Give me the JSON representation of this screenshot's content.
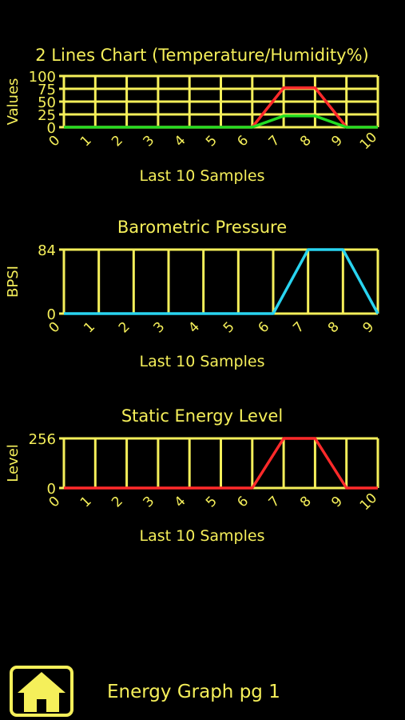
{
  "colors": {
    "axis": "#f5ef5a",
    "background": "#000000"
  },
  "chart_data": [
    {
      "type": "line",
      "title": "2 Lines Chart (Temperature/Humidity%)",
      "ylabel": "Values",
      "xlabel": "Last 10 Samples",
      "x": [
        0,
        1,
        2,
        3,
        4,
        5,
        6,
        7,
        8,
        9,
        10
      ],
      "ylim": [
        0,
        100
      ],
      "yticks": [
        "100",
        "75",
        "50",
        "25",
        "0"
      ],
      "xticks": [
        "0",
        "1",
        "2",
        "3",
        "4",
        "5",
        "6",
        "7",
        "8",
        "9",
        "10"
      ],
      "grid": true,
      "series": [
        {
          "color": "#ff2a2a",
          "values": [
            0,
            0,
            0,
            0,
            0,
            0,
            0,
            77,
            77,
            0,
            0
          ]
        },
        {
          "color": "#22dd22",
          "values": [
            0,
            0,
            0,
            0,
            0,
            0,
            0,
            22,
            22,
            0,
            0
          ]
        }
      ]
    },
    {
      "type": "line",
      "title": "Barometric Pressure",
      "ylabel": "BPSI",
      "xlabel": "Last 10 Samples",
      "x": [
        0,
        1,
        2,
        3,
        4,
        5,
        6,
        7,
        8,
        9
      ],
      "ylim": [
        0,
        84
      ],
      "yticks": [
        "84",
        "0"
      ],
      "xticks": [
        "0",
        "1",
        "2",
        "3",
        "4",
        "5",
        "6",
        "7",
        "8",
        "9"
      ],
      "grid": true,
      "series": [
        {
          "color": "#29d4f0",
          "values": [
            0,
            0,
            0,
            0,
            0,
            0,
            0,
            84,
            84,
            0
          ]
        }
      ]
    },
    {
      "type": "line",
      "title": "Static Energy Level",
      "ylabel": "Level",
      "xlabel": "Last 10 Samples",
      "x": [
        0,
        1,
        2,
        3,
        4,
        5,
        6,
        7,
        8,
        9,
        10
      ],
      "ylim": [
        0,
        256
      ],
      "yticks": [
        "256",
        "0"
      ],
      "xticks": [
        "0",
        "1",
        "2",
        "3",
        "4",
        "5",
        "6",
        "7",
        "8",
        "9",
        "10"
      ],
      "grid": true,
      "series": [
        {
          "color": "#ff2a2a",
          "values": [
            0,
            0,
            0,
            0,
            0,
            0,
            0,
            256,
            256,
            0,
            0
          ]
        }
      ]
    }
  ],
  "footer": {
    "title": "Energy Graph pg 1",
    "home_icon": "home-icon"
  }
}
